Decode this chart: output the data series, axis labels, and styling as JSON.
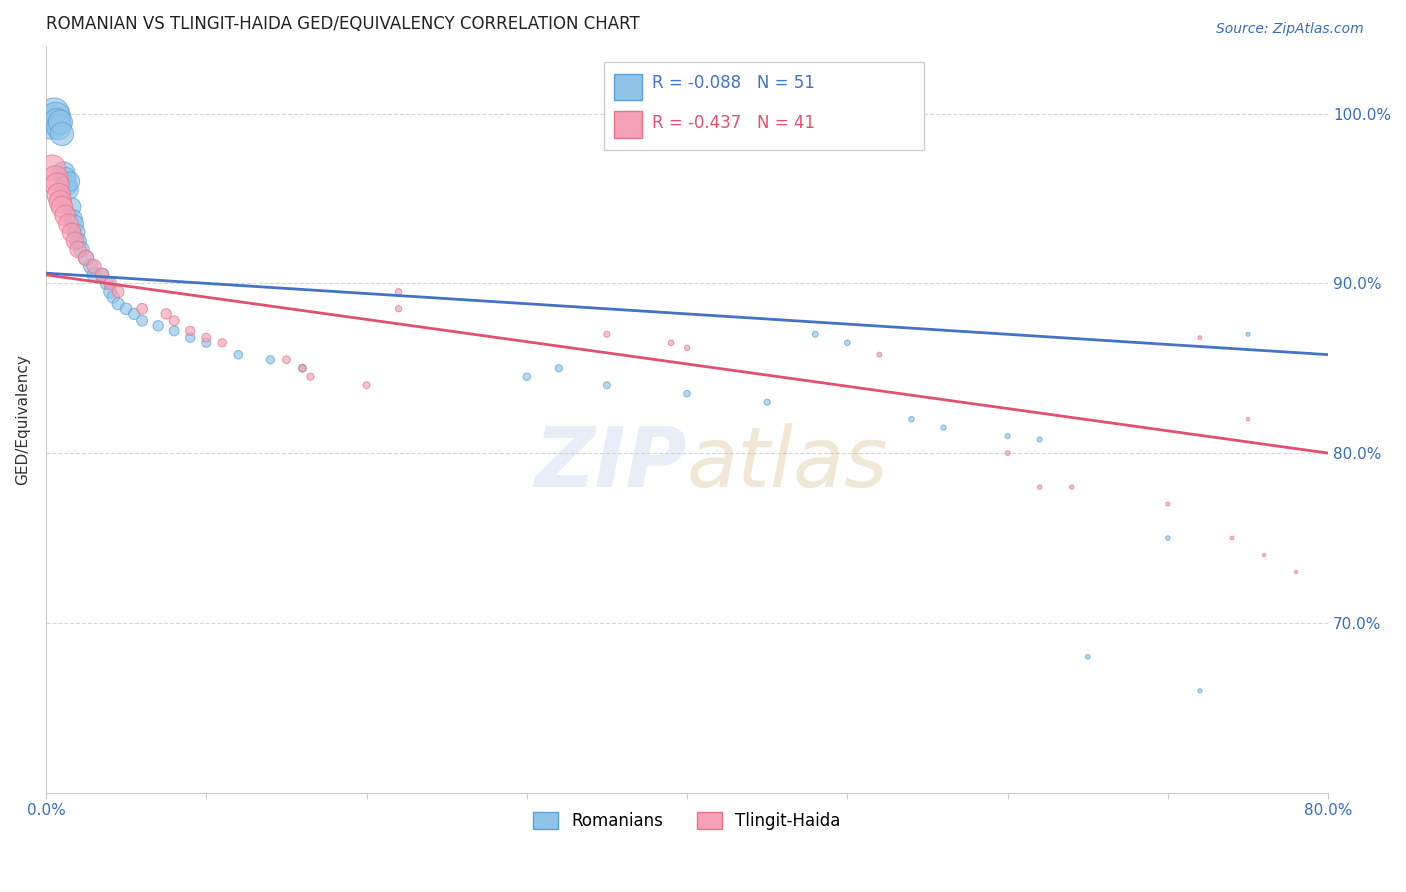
{
  "title": "ROMANIAN VS TLINGIT-HAIDA GED/EQUIVALENCY CORRELATION CHART",
  "source": "Source: ZipAtlas.com",
  "ylabel": "GED/Equivalency",
  "xlim": [
    0.0,
    0.8
  ],
  "ylim": [
    0.6,
    1.04
  ],
  "yticks": [
    0.7,
    0.8,
    0.9,
    1.0
  ],
  "ytick_labels": [
    "70.0%",
    "80.0%",
    "90.0%",
    "100.0%"
  ],
  "xtick_positions": [
    0.0,
    0.1,
    0.2,
    0.3,
    0.4,
    0.5,
    0.6,
    0.7,
    0.8
  ],
  "xtick_labels": [
    "0.0%",
    "",
    "",
    "",
    "",
    "",
    "",
    "",
    "80.0%"
  ],
  "blue_R": -0.088,
  "blue_N": 51,
  "pink_R": -0.437,
  "pink_N": 41,
  "blue_color": "#8fc4e8",
  "pink_color": "#f4a0b5",
  "blue_edge": "#5b9fd4",
  "pink_edge": "#e8708a",
  "trend_blue": "#4472c4",
  "trend_pink": "#e05070",
  "watermark_color": "#b0c8e8",
  "blue_x": [
    0.003,
    0.005,
    0.006,
    0.007,
    0.008,
    0.009,
    0.01,
    0.011,
    0.012,
    0.013,
    0.014,
    0.015,
    0.016,
    0.017,
    0.018,
    0.019,
    0.02,
    0.022,
    0.025,
    0.028,
    0.03,
    0.035,
    0.038,
    0.04,
    0.042,
    0.045,
    0.05,
    0.055,
    0.06,
    0.07,
    0.08,
    0.09,
    0.1,
    0.12,
    0.14,
    0.16,
    0.3,
    0.32,
    0.35,
    0.4,
    0.45,
    0.48,
    0.5,
    0.54,
    0.56,
    0.6,
    0.62,
    0.65,
    0.7,
    0.72,
    0.75
  ],
  "blue_y": [
    0.995,
    1.0,
    0.998,
    0.995,
    0.992,
    0.995,
    0.988,
    0.965,
    0.962,
    0.958,
    0.955,
    0.96,
    0.945,
    0.938,
    0.935,
    0.93,
    0.925,
    0.92,
    0.915,
    0.91,
    0.905,
    0.905,
    0.9,
    0.895,
    0.892,
    0.888,
    0.885,
    0.882,
    0.878,
    0.875,
    0.872,
    0.868,
    0.865,
    0.858,
    0.855,
    0.85,
    0.845,
    0.85,
    0.84,
    0.835,
    0.83,
    0.87,
    0.865,
    0.82,
    0.815,
    0.81,
    0.808,
    0.68,
    0.75,
    0.66,
    0.87
  ],
  "blue_sizes": [
    600,
    500,
    450,
    380,
    320,
    300,
    280,
    260,
    240,
    220,
    200,
    190,
    180,
    170,
    160,
    150,
    140,
    130,
    120,
    110,
    100,
    95,
    90,
    85,
    80,
    75,
    70,
    65,
    60,
    55,
    50,
    45,
    42,
    38,
    34,
    30,
    28,
    26,
    24,
    22,
    20,
    18,
    16,
    15,
    14,
    13,
    12,
    11,
    10,
    9,
    8
  ],
  "pink_x": [
    0.004,
    0.006,
    0.007,
    0.008,
    0.009,
    0.01,
    0.012,
    0.014,
    0.016,
    0.018,
    0.02,
    0.025,
    0.03,
    0.035,
    0.04,
    0.045,
    0.06,
    0.075,
    0.08,
    0.09,
    0.1,
    0.11,
    0.15,
    0.16,
    0.165,
    0.2,
    0.22,
    0.22,
    0.35,
    0.39,
    0.4,
    0.52,
    0.6,
    0.62,
    0.64,
    0.7,
    0.72,
    0.74,
    0.75,
    0.76,
    0.78
  ],
  "pink_y": [
    0.968,
    0.962,
    0.958,
    0.952,
    0.948,
    0.945,
    0.94,
    0.935,
    0.93,
    0.925,
    0.92,
    0.915,
    0.91,
    0.905,
    0.9,
    0.895,
    0.885,
    0.882,
    0.878,
    0.872,
    0.868,
    0.865,
    0.855,
    0.85,
    0.845,
    0.84,
    0.895,
    0.885,
    0.87,
    0.865,
    0.862,
    0.858,
    0.8,
    0.78,
    0.78,
    0.77,
    0.868,
    0.75,
    0.82,
    0.74,
    0.73
  ],
  "pink_sizes": [
    350,
    320,
    300,
    280,
    260,
    240,
    220,
    200,
    180,
    160,
    140,
    120,
    100,
    90,
    80,
    70,
    60,
    55,
    50,
    45,
    40,
    35,
    30,
    28,
    26,
    24,
    22,
    20,
    18,
    16,
    14,
    12,
    11,
    10,
    9,
    8,
    7,
    7,
    6,
    5,
    5
  ],
  "blue_trend_x0": 0.0,
  "blue_trend_y0": 0.906,
  "blue_trend_x1": 0.8,
  "blue_trend_y1": 0.858,
  "pink_trend_x0": 0.0,
  "pink_trend_y0": 0.905,
  "pink_trend_x1": 0.8,
  "pink_trend_y1": 0.8
}
